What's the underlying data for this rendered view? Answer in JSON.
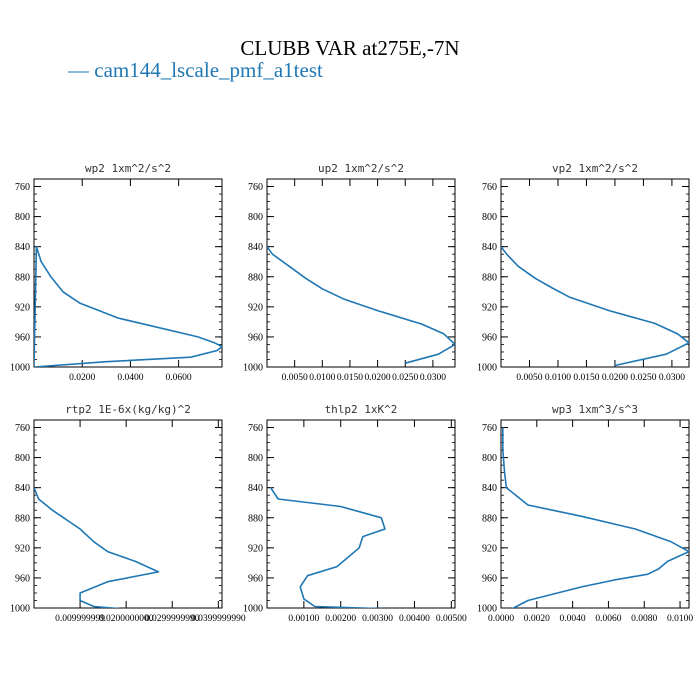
{
  "title": "CLUBB VAR at275E,-7N",
  "legend": {
    "line": "—",
    "label": "cam144_lscale_pmf_a1test",
    "color": "#1f77b4"
  },
  "chart_data": [
    {
      "type": "line",
      "title": "wp2  1xm^2/s^2",
      "ylim": [
        1000,
        750
      ],
      "yticks": [
        "760",
        "800",
        "840",
        "880",
        "920",
        "960",
        "1000"
      ],
      "xlim": [
        0,
        0.078
      ],
      "xticks": [
        "0.0200",
        "0.0400",
        "0.0600"
      ],
      "series": [
        {
          "x": [
            0,
            0.001,
            0.003,
            0.007,
            0.012,
            0.019,
            0.035,
            0.068,
            0.075,
            0.078,
            0.076,
            0.065,
            0.03,
            0
          ],
          "y": [
            1000,
            840,
            860,
            880,
            900,
            915,
            935,
            960,
            968,
            973,
            978,
            987,
            993,
            1000
          ]
        }
      ]
    },
    {
      "type": "line",
      "title": "up2  1xm^2/s^2",
      "ylim": [
        1000,
        750
      ],
      "yticks": [
        "760",
        "800",
        "840",
        "880",
        "920",
        "960",
        "1000"
      ],
      "xlim": [
        0,
        0.034
      ],
      "xticks": [
        "0.0050",
        "0.0100",
        "0.0150",
        "0.0200",
        "0.0250",
        "0.0300"
      ],
      "series": [
        {
          "x": [
            0,
            0.001,
            0.004,
            0.007,
            0.01,
            0.014,
            0.02,
            0.028,
            0.032,
            0.034,
            0.031,
            0.025
          ],
          "y": [
            840,
            850,
            866,
            882,
            896,
            910,
            925,
            943,
            956,
            970,
            983,
            995
          ]
        }
      ]
    },
    {
      "type": "line",
      "title": "vp2  1xm^2/s^2",
      "ylim": [
        1000,
        750
      ],
      "yticks": [
        "760",
        "800",
        "840",
        "880",
        "920",
        "960",
        "1000"
      ],
      "xlim": [
        0,
        0.033
      ],
      "xticks": [
        "0.0050",
        "0.0100",
        "0.0150",
        "0.0200",
        "0.0250",
        "0.0300"
      ],
      "series": [
        {
          "x": [
            0,
            0.001,
            0.003,
            0.006,
            0.009,
            0.012,
            0.019,
            0.027,
            0.031,
            0.033,
            0.029,
            0.02
          ],
          "y": [
            840,
            850,
            866,
            882,
            895,
            907,
            925,
            942,
            956,
            968,
            983,
            998
          ]
        }
      ]
    },
    {
      "type": "line",
      "title": "rtp2  1E-6x(kg/kg)^2",
      "ylim": [
        1000,
        750
      ],
      "yticks": [
        "760",
        "800",
        "840",
        "880",
        "920",
        "960",
        "1000"
      ],
      "xlim": [
        0,
        0.0408
      ],
      "xticks": [
        "0.009999999",
        "0.0200000000",
        "0.0299999990",
        "0.0399999990"
      ],
      "series": [
        {
          "x": [
            0,
            0.001,
            0.004,
            0.01,
            0.013,
            0.016,
            0.022,
            0.027,
            0.016,
            0.01,
            0.01,
            0.013,
            0.023,
            0.0408
          ],
          "y": [
            840,
            855,
            870,
            895,
            912,
            925,
            938,
            952,
            965,
            980,
            990,
            998,
            1003,
            1007
          ]
        }
      ]
    },
    {
      "type": "line",
      "title": "thlp2  1xK^2",
      "ylim": [
        1000,
        750
      ],
      "yticks": [
        "760",
        "800",
        "840",
        "880",
        "920",
        "960",
        "1000"
      ],
      "xlim": [
        0,
        0.0051
      ],
      "xticks": [
        "0.00100",
        "0.00200",
        "0.00300",
        "0.00400",
        "0.00500"
      ],
      "series": [
        {
          "x": [
            0.0001,
            0.0003,
            0.002,
            0.0031,
            0.0032,
            0.0026,
            0.0025,
            0.0019,
            0.0011,
            0.0009,
            0.001,
            0.0013,
            0.0051
          ],
          "y": [
            840,
            855,
            865,
            880,
            895,
            905,
            920,
            945,
            957,
            972,
            988,
            998,
            1004
          ]
        }
      ]
    },
    {
      "type": "line",
      "title": "wp3  1xm^3/s^3",
      "ylim": [
        1000,
        750
      ],
      "yticks": [
        "760",
        "800",
        "840",
        "880",
        "920",
        "960",
        "1000"
      ],
      "xlim": [
        0,
        0.0105
      ],
      "xticks": [
        "0.0000",
        "0.0020",
        "0.0040",
        "0.0060",
        "0.0080",
        "0.0100"
      ],
      "series": [
        {
          "x": [
            0.0001,
            0.0001,
            0.0002,
            0.0003,
            0.0015,
            0.0045,
            0.0075,
            0.0095,
            0.0105,
            0.0093,
            0.0088,
            0.0082,
            0.0065,
            0.0045,
            0.0015,
            0.0007,
            0.0002
          ],
          "y": [
            760,
            790,
            820,
            840,
            863,
            878,
            895,
            912,
            925,
            938,
            948,
            955,
            962,
            972,
            990,
            1000,
            1005
          ]
        }
      ]
    }
  ]
}
